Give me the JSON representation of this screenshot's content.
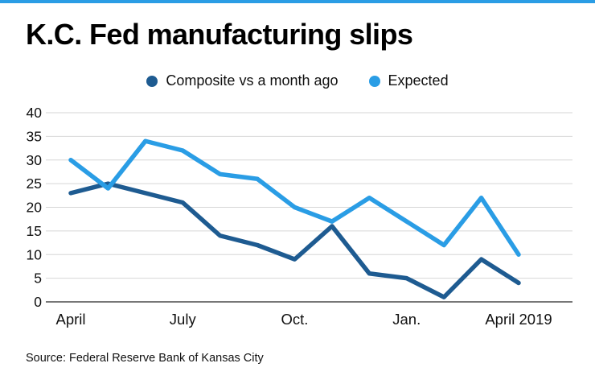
{
  "accent_color": "#2a9de5",
  "title": "K.C. Fed manufacturing slips",
  "legend": [
    {
      "label": "Composite vs a month ago",
      "color": "#1e5b91"
    },
    {
      "label": "Expected",
      "color": "#2a9de5"
    }
  ],
  "source": "Source: Federal Reserve Bank of Kansas City",
  "chart_data": {
    "type": "line",
    "title": "K.C. Fed manufacturing slips",
    "xlabel": "",
    "ylabel": "",
    "n_points": 13,
    "x_tick_labels": [
      {
        "index": 0,
        "label": "April"
      },
      {
        "index": 3,
        "label": "July"
      },
      {
        "index": 6,
        "label": "Oct."
      },
      {
        "index": 9,
        "label": "Jan."
      },
      {
        "index": 12,
        "label": "April 2019"
      }
    ],
    "y_ticks": [
      0,
      5,
      10,
      15,
      20,
      25,
      30,
      35,
      40
    ],
    "ylim": [
      0,
      40
    ],
    "grid": true,
    "legend_position": "top",
    "series": [
      {
        "name": "Composite vs a month ago",
        "color": "#1e5b91",
        "values": [
          23,
          25,
          23,
          21,
          14,
          12,
          9,
          16,
          6,
          5,
          1,
          9,
          4
        ]
      },
      {
        "name": "Expected",
        "color": "#2a9de5",
        "values": [
          30,
          24,
          34,
          32,
          27,
          26,
          20,
          17,
          22,
          17,
          12,
          22,
          10
        ]
      }
    ],
    "source": "Source: Federal Reserve Bank of Kansas City"
  }
}
